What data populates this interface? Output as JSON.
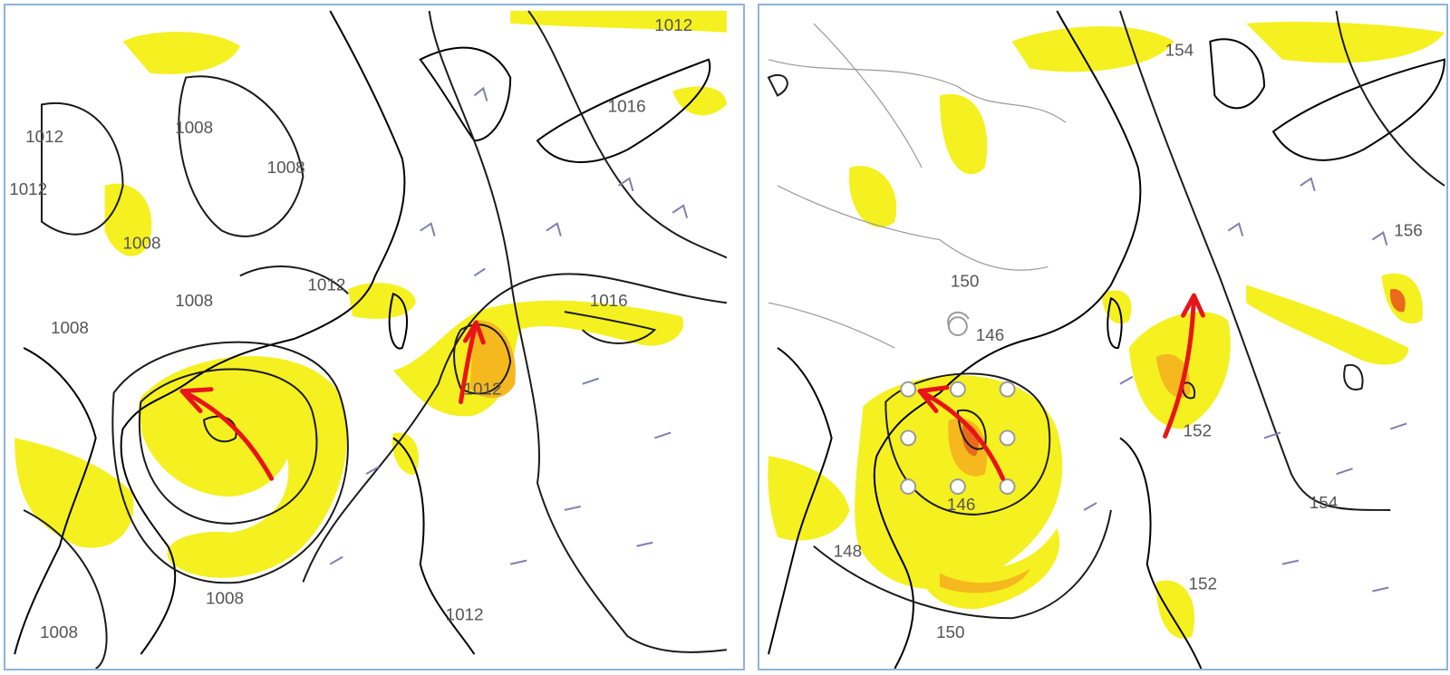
{
  "left_panel": {
    "isobar_labels": [
      "1012",
      "1016",
      "1008",
      "1012",
      "1008",
      "1008",
      "1012",
      "1008",
      "1008",
      "1012",
      "1016",
      "1012",
      "1008",
      "1008",
      "1012"
    ]
  },
  "right_panel": {
    "height_labels": [
      "154",
      "156",
      "150",
      "146",
      "146",
      "152",
      "154",
      "148",
      "152",
      "150"
    ]
  },
  "colors": {
    "precip_light": "#f5f020",
    "precip_medium": "#f5b81e",
    "precip_heavy": "#e86a1a",
    "arrow": "#e8141a",
    "contour": "#1a1a1a",
    "coastline": "#000000",
    "border": "#8fb3d9",
    "wind_barb": "#7f7fb0"
  },
  "icons": {
    "arrow": "red-track-arrow-icon",
    "typhoon": "typhoon-symbol-icon",
    "wind": "wind-barb-icon"
  }
}
